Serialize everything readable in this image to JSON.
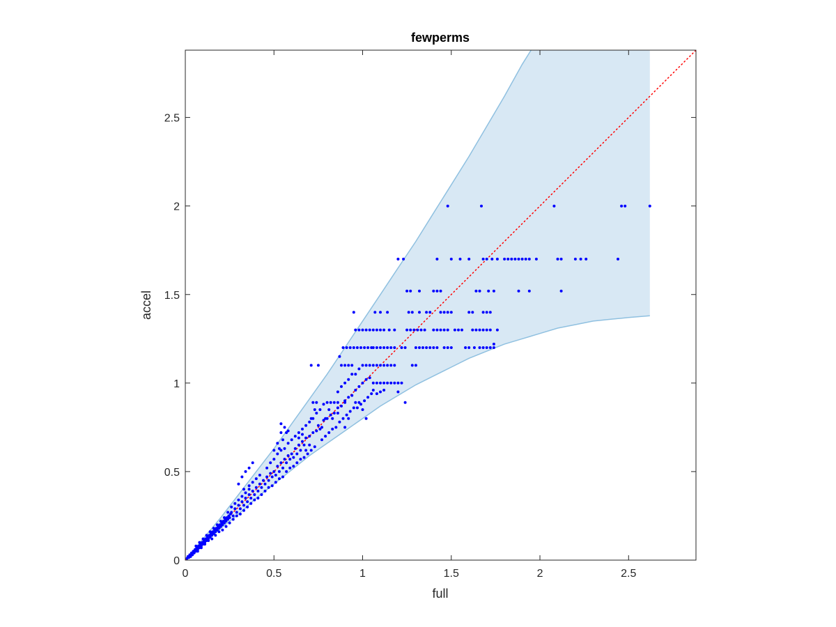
{
  "chart_data": {
    "type": "scatter",
    "title": "fewperms",
    "xlabel": "full",
    "ylabel": "accel",
    "xlim": [
      0,
      2.88
    ],
    "ylim": [
      0,
      2.88
    ],
    "xticks": [
      "0",
      "0.5",
      "1",
      "1.5",
      "2",
      "2.5"
    ],
    "yticks": [
      "0",
      "0.5",
      "1",
      "1.5",
      "2",
      "2.5"
    ],
    "xtick_values": [
      0,
      0.5,
      1,
      1.5,
      2,
      2.5
    ],
    "ytick_values": [
      0,
      0.5,
      1,
      1.5,
      2,
      2.5
    ],
    "grid": false,
    "colors": {
      "points": "#0000ff",
      "band_fill": "#d8e8f4",
      "band_edge": "#8fc0e0",
      "reference_line": "#ff0000",
      "axes": "#262626"
    },
    "reference_line": {
      "style": "dotted",
      "from": [
        0,
        0
      ],
      "to": [
        2.88,
        2.88
      ]
    },
    "band": {
      "x": [
        0,
        0.1,
        0.2,
        0.3,
        0.4,
        0.5,
        0.6,
        0.7,
        0.8,
        0.9,
        1.0,
        1.1,
        1.2,
        1.3,
        1.4,
        1.5,
        1.6,
        1.7,
        1.8,
        1.9,
        2.0,
        2.1,
        2.2,
        2.3,
        2.4,
        2.5,
        2.62
      ],
      "upper": [
        0,
        0.12,
        0.24,
        0.37,
        0.5,
        0.63,
        0.77,
        0.91,
        1.05,
        1.2,
        1.35,
        1.5,
        1.65,
        1.8,
        1.96,
        2.12,
        2.28,
        2.45,
        2.62,
        2.8,
        2.96,
        3.1,
        3.1,
        3.1,
        3.1,
        3.1,
        3.1
      ],
      "lower": [
        0,
        0.09,
        0.18,
        0.26,
        0.35,
        0.43,
        0.51,
        0.59,
        0.66,
        0.73,
        0.8,
        0.87,
        0.93,
        0.99,
        1.04,
        1.09,
        1.14,
        1.18,
        1.22,
        1.25,
        1.28,
        1.31,
        1.33,
        1.35,
        1.36,
        1.37,
        1.38
      ],
      "upper_clipped_at_top": true
    },
    "points": [
      [
        0.01,
        0.01
      ],
      [
        0.015,
        0.02
      ],
      [
        0.02,
        0.015
      ],
      [
        0.025,
        0.03
      ],
      [
        0.03,
        0.02
      ],
      [
        0.035,
        0.04
      ],
      [
        0.04,
        0.03
      ],
      [
        0.045,
        0.05
      ],
      [
        0.05,
        0.04
      ],
      [
        0.055,
        0.06
      ],
      [
        0.06,
        0.05
      ],
      [
        0.065,
        0.07
      ],
      [
        0.07,
        0.06
      ],
      [
        0.075,
        0.08
      ],
      [
        0.08,
        0.07
      ],
      [
        0.085,
        0.09
      ],
      [
        0.09,
        0.08
      ],
      [
        0.095,
        0.1
      ],
      [
        0.1,
        0.09
      ],
      [
        0.105,
        0.11
      ],
      [
        0.11,
        0.1
      ],
      [
        0.115,
        0.12
      ],
      [
        0.12,
        0.11
      ],
      [
        0.125,
        0.13
      ],
      [
        0.13,
        0.12
      ],
      [
        0.135,
        0.14
      ],
      [
        0.14,
        0.13
      ],
      [
        0.145,
        0.15
      ],
      [
        0.15,
        0.14
      ],
      [
        0.155,
        0.16
      ],
      [
        0.16,
        0.15
      ],
      [
        0.165,
        0.17
      ],
      [
        0.17,
        0.16
      ],
      [
        0.175,
        0.18
      ],
      [
        0.18,
        0.17
      ],
      [
        0.185,
        0.19
      ],
      [
        0.19,
        0.18
      ],
      [
        0.195,
        0.2
      ],
      [
        0.2,
        0.19
      ],
      [
        0.205,
        0.21
      ],
      [
        0.21,
        0.2
      ],
      [
        0.215,
        0.22
      ],
      [
        0.22,
        0.21
      ],
      [
        0.225,
        0.23
      ],
      [
        0.23,
        0.22
      ],
      [
        0.235,
        0.24
      ],
      [
        0.24,
        0.23
      ],
      [
        0.245,
        0.25
      ],
      [
        0.25,
        0.24
      ],
      [
        0.255,
        0.26
      ],
      [
        0.06,
        0.08
      ],
      [
        0.08,
        0.1
      ],
      [
        0.1,
        0.12
      ],
      [
        0.12,
        0.14
      ],
      [
        0.14,
        0.16
      ],
      [
        0.16,
        0.18
      ],
      [
        0.18,
        0.2
      ],
      [
        0.2,
        0.22
      ],
      [
        0.22,
        0.24
      ],
      [
        0.24,
        0.27
      ],
      [
        0.07,
        0.05
      ],
      [
        0.09,
        0.07
      ],
      [
        0.11,
        0.09
      ],
      [
        0.13,
        0.11
      ],
      [
        0.15,
        0.12
      ],
      [
        0.17,
        0.14
      ],
      [
        0.19,
        0.16
      ],
      [
        0.21,
        0.17
      ],
      [
        0.23,
        0.19
      ],
      [
        0.25,
        0.21
      ],
      [
        0.26,
        0.27
      ],
      [
        0.27,
        0.25
      ],
      [
        0.28,
        0.29
      ],
      [
        0.29,
        0.27
      ],
      [
        0.3,
        0.31
      ],
      [
        0.31,
        0.29
      ],
      [
        0.32,
        0.33
      ],
      [
        0.33,
        0.31
      ],
      [
        0.34,
        0.35
      ],
      [
        0.35,
        0.33
      ],
      [
        0.26,
        0.3
      ],
      [
        0.28,
        0.32
      ],
      [
        0.3,
        0.34
      ],
      [
        0.32,
        0.36
      ],
      [
        0.34,
        0.38
      ],
      [
        0.36,
        0.4
      ],
      [
        0.27,
        0.23
      ],
      [
        0.29,
        0.25
      ],
      [
        0.31,
        0.26
      ],
      [
        0.33,
        0.28
      ],
      [
        0.36,
        0.37
      ],
      [
        0.37,
        0.35
      ],
      [
        0.38,
        0.39
      ],
      [
        0.39,
        0.37
      ],
      [
        0.4,
        0.41
      ],
      [
        0.41,
        0.39
      ],
      [
        0.42,
        0.43
      ],
      [
        0.43,
        0.41
      ],
      [
        0.44,
        0.45
      ],
      [
        0.45,
        0.43
      ],
      [
        0.36,
        0.42
      ],
      [
        0.38,
        0.44
      ],
      [
        0.4,
        0.46
      ],
      [
        0.42,
        0.48
      ],
      [
        0.35,
        0.3
      ],
      [
        0.37,
        0.32
      ],
      [
        0.39,
        0.34
      ],
      [
        0.41,
        0.35
      ],
      [
        0.43,
        0.37
      ],
      [
        0.45,
        0.39
      ],
      [
        0.32,
        0.47
      ],
      [
        0.34,
        0.5
      ],
      [
        0.36,
        0.52
      ],
      [
        0.38,
        0.55
      ],
      [
        0.3,
        0.43
      ],
      [
        0.33,
        0.4
      ],
      [
        0.46,
        0.47
      ],
      [
        0.47,
        0.45
      ],
      [
        0.48,
        0.49
      ],
      [
        0.49,
        0.47
      ],
      [
        0.5,
        0.5
      ],
      [
        0.51,
        0.48
      ],
      [
        0.52,
        0.53
      ],
      [
        0.53,
        0.5
      ],
      [
        0.54,
        0.55
      ],
      [
        0.55,
        0.52
      ],
      [
        0.46,
        0.52
      ],
      [
        0.48,
        0.55
      ],
      [
        0.5,
        0.57
      ],
      [
        0.52,
        0.6
      ],
      [
        0.54,
        0.62
      ],
      [
        0.47,
        0.41
      ],
      [
        0.49,
        0.42
      ],
      [
        0.51,
        0.44
      ],
      [
        0.53,
        0.46
      ],
      [
        0.55,
        0.47
      ],
      [
        0.56,
        0.57
      ],
      [
        0.57,
        0.55
      ],
      [
        0.58,
        0.59
      ],
      [
        0.59,
        0.57
      ],
      [
        0.6,
        0.6
      ],
      [
        0.61,
        0.58
      ],
      [
        0.62,
        0.63
      ],
      [
        0.63,
        0.6
      ],
      [
        0.64,
        0.65
      ],
      [
        0.65,
        0.62
      ],
      [
        0.56,
        0.63
      ],
      [
        0.58,
        0.66
      ],
      [
        0.6,
        0.68
      ],
      [
        0.62,
        0.7
      ],
      [
        0.64,
        0.72
      ],
      [
        0.57,
        0.5
      ],
      [
        0.59,
        0.52
      ],
      [
        0.61,
        0.53
      ],
      [
        0.63,
        0.55
      ],
      [
        0.65,
        0.57
      ],
      [
        0.52,
        0.66
      ],
      [
        0.55,
        0.68
      ],
      [
        0.57,
        0.72
      ],
      [
        0.53,
        0.63
      ],
      [
        0.5,
        0.62
      ],
      [
        0.54,
        0.72
      ],
      [
        0.56,
        0.75
      ],
      [
        0.54,
        0.77
      ],
      [
        0.58,
        0.73
      ],
      [
        0.66,
        0.67
      ],
      [
        0.67,
        0.65
      ],
      [
        0.68,
        0.69
      ],
      [
        0.7,
        0.7
      ],
      [
        0.72,
        0.72
      ],
      [
        0.74,
        0.73
      ],
      [
        0.66,
        0.74
      ],
      [
        0.68,
        0.76
      ],
      [
        0.7,
        0.78
      ],
      [
        0.72,
        0.8
      ],
      [
        0.74,
        0.83
      ],
      [
        0.67,
        0.58
      ],
      [
        0.69,
        0.6
      ],
      [
        0.71,
        0.62
      ],
      [
        0.73,
        0.64
      ],
      [
        0.64,
        0.69
      ],
      [
        0.66,
        0.71
      ],
      [
        0.68,
        0.62
      ],
      [
        0.7,
        0.65
      ],
      [
        0.75,
        0.76
      ],
      [
        0.76,
        0.74
      ],
      [
        0.78,
        0.79
      ],
      [
        0.8,
        0.8
      ],
      [
        0.82,
        0.82
      ],
      [
        0.84,
        0.83
      ],
      [
        0.76,
        0.85
      ],
      [
        0.78,
        0.88
      ],
      [
        0.8,
        0.89
      ],
      [
        0.82,
        0.89
      ],
      [
        0.84,
        0.89
      ],
      [
        0.86,
        0.89
      ],
      [
        0.77,
        0.68
      ],
      [
        0.79,
        0.7
      ],
      [
        0.81,
        0.72
      ],
      [
        0.83,
        0.74
      ],
      [
        0.85,
        0.75
      ],
      [
        0.72,
        0.89
      ],
      [
        0.74,
        0.89
      ],
      [
        0.71,
        1.1
      ],
      [
        0.75,
        1.1
      ],
      [
        0.71,
        0.8
      ],
      [
        0.73,
        0.85
      ],
      [
        0.77,
        0.75
      ],
      [
        0.79,
        0.8
      ],
      [
        0.81,
        0.85
      ],
      [
        0.83,
        0.8
      ],
      [
        0.86,
        0.86
      ],
      [
        0.88,
        0.87
      ],
      [
        0.9,
        0.9
      ],
      [
        0.92,
        0.92
      ],
      [
        0.94,
        0.93
      ],
      [
        0.86,
        0.95
      ],
      [
        0.88,
        0.98
      ],
      [
        0.9,
        1.0
      ],
      [
        0.92,
        1.02
      ],
      [
        0.94,
        1.05
      ],
      [
        0.87,
        0.78
      ],
      [
        0.89,
        0.8
      ],
      [
        0.91,
        0.82
      ],
      [
        0.93,
        0.84
      ],
      [
        0.95,
        0.86
      ],
      [
        0.88,
        1.1
      ],
      [
        0.9,
        1.1
      ],
      [
        0.92,
        1.1
      ],
      [
        0.94,
        1.1
      ],
      [
        0.87,
        1.15
      ],
      [
        0.89,
        1.2
      ],
      [
        0.91,
        1.2
      ],
      [
        0.93,
        1.2
      ],
      [
        0.95,
        1.2
      ],
      [
        0.9,
        0.89
      ],
      [
        0.92,
        0.8
      ],
      [
        0.96,
        0.89
      ],
      [
        0.98,
        0.89
      ],
      [
        0.86,
        0.83
      ],
      [
        0.9,
        0.75
      ],
      [
        0.96,
        0.96
      ],
      [
        0.98,
        0.98
      ],
      [
        1.0,
        1.0
      ],
      [
        1.02,
        1.02
      ],
      [
        1.04,
        1.03
      ],
      [
        0.96,
        1.05
      ],
      [
        0.98,
        1.08
      ],
      [
        1.0,
        1.1
      ],
      [
        1.02,
        1.1
      ],
      [
        1.04,
        1.1
      ],
      [
        1.06,
        1.1
      ],
      [
        1.08,
        1.1
      ],
      [
        0.97,
        0.86
      ],
      [
        0.99,
        0.88
      ],
      [
        1.01,
        0.9
      ],
      [
        1.03,
        0.92
      ],
      [
        1.05,
        0.94
      ],
      [
        0.97,
        1.2
      ],
      [
        0.99,
        1.2
      ],
      [
        1.01,
        1.2
      ],
      [
        1.03,
        1.2
      ],
      [
        1.05,
        1.2
      ],
      [
        0.96,
        1.3
      ],
      [
        0.98,
        1.3
      ],
      [
        1.0,
        1.3
      ],
      [
        1.02,
        1.3
      ],
      [
        1.04,
        1.3
      ],
      [
        0.95,
        1.4
      ],
      [
        1.0,
        0.85
      ],
      [
        1.02,
        0.8
      ],
      [
        1.06,
        1.0
      ],
      [
        1.08,
        1.0
      ],
      [
        1.1,
        1.0
      ],
      [
        1.12,
        1.0
      ],
      [
        1.06,
        0.96
      ],
      [
        1.08,
        0.94
      ],
      [
        1.1,
        0.95
      ],
      [
        1.12,
        0.96
      ],
      [
        1.14,
        1.0
      ],
      [
        1.06,
        1.2
      ],
      [
        1.08,
        1.2
      ],
      [
        1.1,
        1.2
      ],
      [
        1.12,
        1.2
      ],
      [
        1.14,
        1.2
      ],
      [
        1.1,
        1.1
      ],
      [
        1.12,
        1.1
      ],
      [
        1.14,
        1.1
      ],
      [
        1.16,
        1.1
      ],
      [
        1.18,
        1.1
      ],
      [
        1.06,
        1.3
      ],
      [
        1.08,
        1.3
      ],
      [
        1.1,
        1.3
      ],
      [
        1.12,
        1.3
      ],
      [
        1.07,
        1.4
      ],
      [
        1.1,
        1.4
      ],
      [
        1.14,
        1.4
      ],
      [
        1.16,
        1.2
      ],
      [
        1.18,
        1.2
      ],
      [
        1.2,
        1.0
      ],
      [
        1.22,
        1.0
      ],
      [
        1.16,
        1.0
      ],
      [
        1.18,
        1.0
      ],
      [
        1.15,
        1.3
      ],
      [
        1.18,
        1.3
      ],
      [
        1.2,
        1.7
      ],
      [
        1.23,
        1.7
      ],
      [
        1.24,
        0.89
      ],
      [
        1.2,
        0.95
      ],
      [
        1.25,
        1.3
      ],
      [
        1.27,
        1.3
      ],
      [
        1.29,
        1.3
      ],
      [
        1.31,
        1.3
      ],
      [
        1.33,
        1.3
      ],
      [
        1.35,
        1.3
      ],
      [
        1.22,
        1.2
      ],
      [
        1.24,
        1.2
      ],
      [
        1.3,
        1.2
      ],
      [
        1.32,
        1.2
      ],
      [
        1.34,
        1.2
      ],
      [
        1.36,
        1.2
      ],
      [
        1.38,
        1.2
      ],
      [
        1.4,
        1.2
      ],
      [
        1.42,
        1.2
      ],
      [
        1.26,
        1.4
      ],
      [
        1.28,
        1.4
      ],
      [
        1.32,
        1.4
      ],
      [
        1.36,
        1.4
      ],
      [
        1.38,
        1.4
      ],
      [
        1.25,
        1.52
      ],
      [
        1.27,
        1.52
      ],
      [
        1.32,
        1.52
      ],
      [
        1.4,
        1.52
      ],
      [
        1.42,
        1.52
      ],
      [
        1.44,
        1.52
      ],
      [
        1.28,
        1.1
      ],
      [
        1.3,
        1.1
      ],
      [
        1.4,
        1.3
      ],
      [
        1.42,
        1.3
      ],
      [
        1.44,
        1.3
      ],
      [
        1.46,
        1.3
      ],
      [
        1.48,
        1.3
      ],
      [
        1.44,
        1.4
      ],
      [
        1.46,
        1.4
      ],
      [
        1.48,
        1.4
      ],
      [
        1.5,
        1.4
      ],
      [
        1.46,
        1.2
      ],
      [
        1.48,
        1.2
      ],
      [
        1.5,
        1.2
      ],
      [
        1.52,
        1.3
      ],
      [
        1.54,
        1.3
      ],
      [
        1.56,
        1.3
      ],
      [
        1.58,
        1.2
      ],
      [
        1.6,
        1.2
      ],
      [
        1.62,
        1.3
      ],
      [
        1.64,
        1.3
      ],
      [
        1.64,
        1.52
      ],
      [
        1.66,
        1.52
      ],
      [
        1.6,
        1.4
      ],
      [
        1.62,
        1.4
      ],
      [
        1.63,
        1.2
      ],
      [
        1.42,
        1.7
      ],
      [
        1.5,
        1.7
      ],
      [
        1.55,
        1.7
      ],
      [
        1.6,
        1.7
      ],
      [
        1.68,
        1.7
      ],
      [
        1.7,
        1.7
      ],
      [
        1.66,
        1.3
      ],
      [
        1.68,
        1.3
      ],
      [
        1.7,
        1.3
      ],
      [
        1.72,
        1.3
      ],
      [
        1.66,
        1.2
      ],
      [
        1.68,
        1.2
      ],
      [
        1.7,
        1.2
      ],
      [
        1.72,
        1.2
      ],
      [
        1.74,
        1.2
      ],
      [
        1.76,
        1.3
      ],
      [
        1.68,
        1.4
      ],
      [
        1.7,
        1.4
      ],
      [
        1.72,
        1.4
      ],
      [
        1.74,
        1.22
      ],
      [
        1.71,
        1.52
      ],
      [
        1.74,
        1.52
      ],
      [
        1.73,
        1.7
      ],
      [
        1.76,
        1.7
      ],
      [
        1.8,
        1.7
      ],
      [
        1.82,
        1.7
      ],
      [
        1.84,
        1.7
      ],
      [
        1.86,
        1.7
      ],
      [
        1.88,
        1.7
      ],
      [
        1.9,
        1.7
      ],
      [
        1.92,
        1.7
      ],
      [
        1.94,
        1.7
      ],
      [
        1.98,
        1.7
      ],
      [
        2.1,
        1.7
      ],
      [
        2.12,
        1.7
      ],
      [
        2.2,
        1.7
      ],
      [
        2.23,
        1.7
      ],
      [
        2.26,
        1.7
      ],
      [
        2.44,
        1.7
      ],
      [
        1.88,
        1.52
      ],
      [
        1.94,
        1.52
      ],
      [
        2.12,
        1.52
      ],
      [
        1.48,
        2.0
      ],
      [
        1.67,
        2.0
      ],
      [
        2.08,
        2.0
      ],
      [
        2.46,
        2.0
      ],
      [
        2.48,
        2.0
      ],
      [
        2.62,
        2.0
      ]
    ]
  }
}
